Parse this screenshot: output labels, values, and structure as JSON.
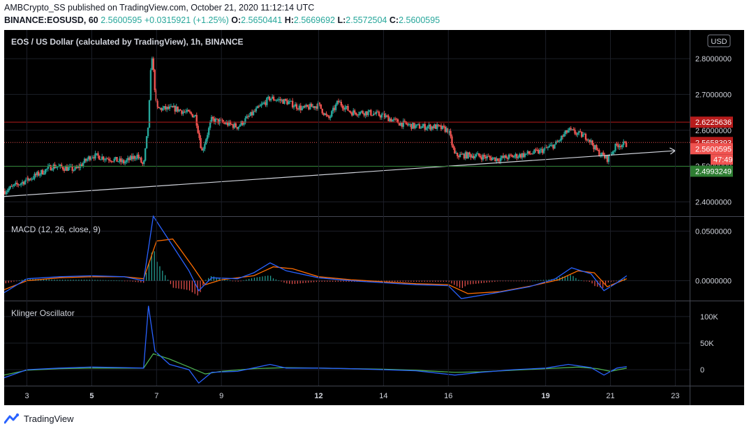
{
  "header": {
    "publisher": "AMBCrypto_SS published on TradingView.com, October 21, 2020 11:12:14 UTC",
    "symbol": "BINANCE:EOSUSD, 60",
    "last": "2.5600595",
    "change": "+0.0315921 (+1.25%)",
    "o_label": "O:",
    "o": "2.5650441",
    "h_label": "H:",
    "h": "2.5669692",
    "l_label": "L:",
    "l": "2.5572504",
    "c_label": "C:",
    "c": "2.5600595"
  },
  "footer": {
    "brand": "TradingView"
  },
  "colors": {
    "background": "#000000",
    "up": "#26a69a",
    "down": "#ef5350",
    "macd_line": "#2962ff",
    "signal_line": "#ff6d00",
    "klinger_line": "#2962ff",
    "klinger_signal": "#4caf50",
    "resistance": "#b71c1c",
    "support": "#2e7d32",
    "trendline": "#d1d4dc"
  },
  "chart_data": [
    {
      "type": "candlestick",
      "title": "EOS / US Dollar (calculated by TradingView), 1h, BINANCE",
      "currency": "USD",
      "x_ticks": [
        "3",
        "5",
        "7",
        "9",
        "12",
        "14",
        "16",
        "19",
        "21",
        "23"
      ],
      "x_ticks_bold": [
        "5",
        "12",
        "19"
      ],
      "x_range_days": [
        2.3,
        23.4
      ],
      "ylim": [
        2.36,
        2.88
      ],
      "y_ticks": [
        "2.8000000",
        "2.7000000",
        "2.6000000",
        "2.5000000",
        "2.4000000"
      ],
      "price_path": [
        [
          2.3,
          2.43
        ],
        [
          3.2,
          2.47
        ],
        [
          3.8,
          2.5
        ],
        [
          4.5,
          2.49
        ],
        [
          5.0,
          2.53
        ],
        [
          5.6,
          2.52
        ],
        [
          6.0,
          2.51
        ],
        [
          6.4,
          2.53
        ],
        [
          6.6,
          2.5
        ],
        [
          6.75,
          2.62
        ],
        [
          6.85,
          2.82
        ],
        [
          7.0,
          2.66
        ],
        [
          7.6,
          2.66
        ],
        [
          8.2,
          2.64
        ],
        [
          8.4,
          2.54
        ],
        [
          8.7,
          2.63
        ],
        [
          9.5,
          2.61
        ],
        [
          10.0,
          2.65
        ],
        [
          10.5,
          2.69
        ],
        [
          11.0,
          2.68
        ],
        [
          11.5,
          2.66
        ],
        [
          12.0,
          2.67
        ],
        [
          12.3,
          2.63
        ],
        [
          12.6,
          2.68
        ],
        [
          13.0,
          2.65
        ],
        [
          13.5,
          2.65
        ],
        [
          14.0,
          2.64
        ],
        [
          14.5,
          2.62
        ],
        [
          15.0,
          2.61
        ],
        [
          15.6,
          2.61
        ],
        [
          16.0,
          2.6
        ],
        [
          16.2,
          2.53
        ],
        [
          16.8,
          2.53
        ],
        [
          17.5,
          2.52
        ],
        [
          18.2,
          2.53
        ],
        [
          18.8,
          2.54
        ],
        [
          19.3,
          2.56
        ],
        [
          19.7,
          2.6
        ],
        [
          20.3,
          2.58
        ],
        [
          20.6,
          2.54
        ],
        [
          20.9,
          2.52
        ],
        [
          21.2,
          2.56
        ],
        [
          21.5,
          2.56
        ]
      ],
      "levels": [
        {
          "label": "2.6225636",
          "value": 2.6225636,
          "style": "resistance"
        },
        {
          "label": "2.5658393",
          "value": 2.5658393,
          "style": "dotted"
        },
        {
          "label": "2.5600595",
          "value": 2.5600595,
          "style": "last"
        },
        {
          "label": "2.4993249",
          "value": 2.4993249,
          "style": "support"
        }
      ],
      "countdown": "47:49",
      "trendline": {
        "from": [
          2.3,
          2.415
        ],
        "to": [
          23.0,
          2.543
        ]
      }
    },
    {
      "type": "line",
      "title": "MACD (12, 26, close, 9)",
      "ylim": [
        -0.02,
        0.065
      ],
      "y_ticks": [
        "0.0500000",
        "0.0000000"
      ],
      "macd": [
        [
          2.3,
          -0.012
        ],
        [
          3.0,
          0.002
        ],
        [
          4.0,
          0.004
        ],
        [
          5.0,
          0.005
        ],
        [
          6.0,
          0.004
        ],
        [
          6.6,
          0.0
        ],
        [
          6.9,
          0.065
        ],
        [
          7.4,
          0.04
        ],
        [
          8.0,
          0.01
        ],
        [
          8.3,
          -0.01
        ],
        [
          8.7,
          0.003
        ],
        [
          9.5,
          0.002
        ],
        [
          10.0,
          0.008
        ],
        [
          10.5,
          0.018
        ],
        [
          11.0,
          0.01
        ],
        [
          12.0,
          0.003
        ],
        [
          13.0,
          0.0
        ],
        [
          14.0,
          -0.002
        ],
        [
          15.0,
          -0.004
        ],
        [
          16.0,
          -0.005
        ],
        [
          16.4,
          -0.018
        ],
        [
          17.5,
          -0.012
        ],
        [
          18.5,
          -0.006
        ],
        [
          19.3,
          0.002
        ],
        [
          19.8,
          0.013
        ],
        [
          20.4,
          0.007
        ],
        [
          20.8,
          -0.01
        ],
        [
          21.2,
          -0.002
        ],
        [
          21.5,
          0.005
        ]
      ],
      "signal": [
        [
          2.3,
          -0.009
        ],
        [
          3.0,
          0.0
        ],
        [
          4.0,
          0.003
        ],
        [
          5.0,
          0.004
        ],
        [
          6.0,
          0.004
        ],
        [
          6.6,
          0.002
        ],
        [
          7.0,
          0.04
        ],
        [
          7.5,
          0.042
        ],
        [
          8.1,
          0.015
        ],
        [
          8.5,
          -0.004
        ],
        [
          9.0,
          0.001
        ],
        [
          10.0,
          0.005
        ],
        [
          10.6,
          0.014
        ],
        [
          11.2,
          0.012
        ],
        [
          12.0,
          0.004
        ],
        [
          13.0,
          0.001
        ],
        [
          14.0,
          -0.001
        ],
        [
          15.0,
          -0.003
        ],
        [
          16.0,
          -0.004
        ],
        [
          16.6,
          -0.013
        ],
        [
          17.6,
          -0.011
        ],
        [
          18.6,
          -0.005
        ],
        [
          19.4,
          0.001
        ],
        [
          20.0,
          0.01
        ],
        [
          20.5,
          0.008
        ],
        [
          20.9,
          -0.006
        ],
        [
          21.5,
          0.002
        ]
      ]
    },
    {
      "type": "line",
      "title": "Klinger Oscillator",
      "ylim": [
        -30000,
        130000
      ],
      "y_ticks": [
        "100K",
        "50K",
        "0"
      ],
      "kvo": [
        [
          2.3,
          -15000
        ],
        [
          3.0,
          0
        ],
        [
          4.0,
          3000
        ],
        [
          5.0,
          5000
        ],
        [
          6.0,
          4000
        ],
        [
          6.6,
          3000
        ],
        [
          6.75,
          120000
        ],
        [
          6.95,
          35000
        ],
        [
          7.4,
          10000
        ],
        [
          8.0,
          0
        ],
        [
          8.3,
          -25000
        ],
        [
          8.7,
          -5000
        ],
        [
          9.5,
          -3000
        ],
        [
          10.5,
          10000
        ],
        [
          11.0,
          3000
        ],
        [
          12.0,
          3000
        ],
        [
          13.0,
          2000
        ],
        [
          14.0,
          0
        ],
        [
          15.0,
          -2000
        ],
        [
          16.2,
          -10000
        ],
        [
          17.0,
          -5000
        ],
        [
          18.0,
          0
        ],
        [
          19.0,
          3000
        ],
        [
          19.7,
          10000
        ],
        [
          20.4,
          4000
        ],
        [
          20.8,
          -10000
        ],
        [
          21.2,
          3000
        ],
        [
          21.5,
          6000
        ]
      ],
      "signal": [
        [
          2.3,
          -10000
        ],
        [
          3.0,
          -1000
        ],
        [
          4.0,
          2000
        ],
        [
          5.0,
          3000
        ],
        [
          6.0,
          3000
        ],
        [
          6.6,
          3000
        ],
        [
          6.9,
          30000
        ],
        [
          7.4,
          20000
        ],
        [
          8.0,
          5000
        ],
        [
          8.5,
          -8000
        ],
        [
          9.0,
          -3000
        ],
        [
          10.0,
          2000
        ],
        [
          11.0,
          4000
        ],
        [
          12.0,
          3000
        ],
        [
          13.0,
          2000
        ],
        [
          14.0,
          1000
        ],
        [
          15.0,
          -1000
        ],
        [
          16.2,
          -5000
        ],
        [
          17.0,
          -4000
        ],
        [
          18.0,
          -1000
        ],
        [
          19.0,
          2000
        ],
        [
          20.0,
          5000
        ],
        [
          20.6,
          2000
        ],
        [
          21.0,
          -3000
        ],
        [
          21.5,
          3000
        ]
      ]
    }
  ]
}
